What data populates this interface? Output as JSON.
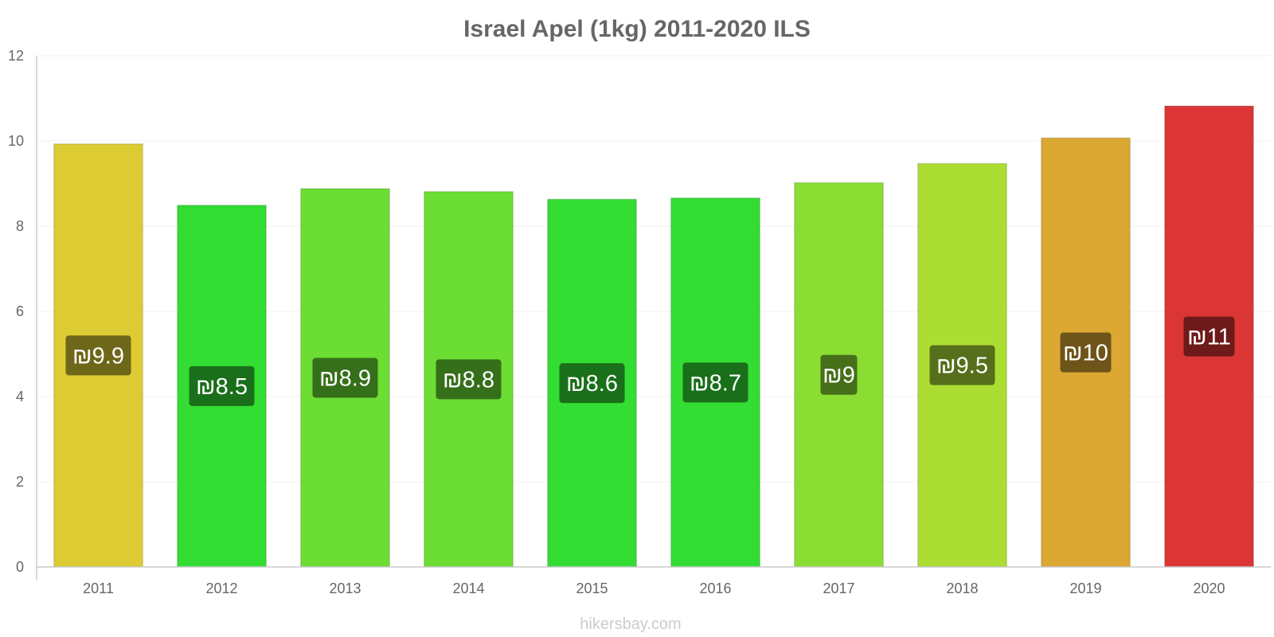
{
  "chart_data": {
    "type": "bar",
    "title": "Israel Apel (1kg) 2011-2020 ILS",
    "xlabel": "",
    "ylabel": "",
    "ylim": [
      0,
      12
    ],
    "yticks": [
      0,
      2,
      4,
      6,
      8,
      10,
      12
    ],
    "categories": [
      "2011",
      "2012",
      "2013",
      "2014",
      "2015",
      "2016",
      "2017",
      "2018",
      "2019",
      "2020"
    ],
    "values": [
      9.93,
      8.49,
      8.88,
      8.81,
      8.63,
      8.66,
      9.02,
      9.47,
      10.07,
      10.82
    ],
    "data_labels": [
      "₪9.9",
      "₪8.5",
      "₪8.9",
      "₪8.8",
      "₪8.6",
      "₪8.7",
      "₪9",
      "₪9.5",
      "₪10",
      "₪11"
    ],
    "bar_colors": [
      "#dccb33",
      "#33dd33",
      "#6bdd33",
      "#6bdd33",
      "#33dd33",
      "#33dd33",
      "#8bdd33",
      "#acdd33",
      "#dca833",
      "#dc3535"
    ],
    "label_colors": [
      "#6e6619",
      "#1a6f1a",
      "#366f1a",
      "#366f1a",
      "#1a6f1a",
      "#1a6f1a",
      "#466f1a",
      "#566f1a",
      "#6e5419",
      "#6e1a1a"
    ],
    "grid": true,
    "watermark": "hikersbay.com"
  }
}
